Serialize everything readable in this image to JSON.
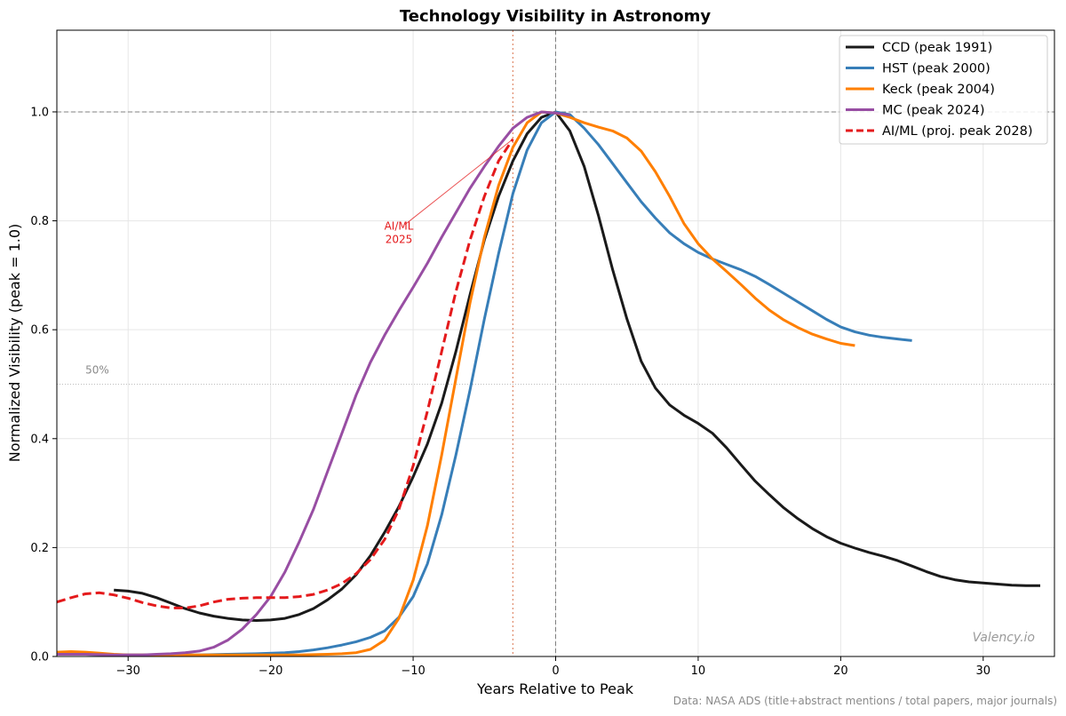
{
  "chart_data": {
    "type": "line",
    "title": "Technology Visibility in Astronomy",
    "xlabel": "Years Relative to Peak",
    "ylabel": "Normalized Visibility (peak = 1.0)",
    "xlim": [
      -35,
      35
    ],
    "ylim": [
      0,
      1.15
    ],
    "xticks": [
      -30,
      -20,
      -10,
      0,
      10,
      20,
      30
    ],
    "yticks": [
      0.0,
      0.2,
      0.4,
      0.6,
      0.8,
      1.0
    ],
    "grid": true,
    "legend_position": "top-right",
    "reference_lines": {
      "peak_y": 1.0,
      "peak_x": 0,
      "half_y": 0.5,
      "half_label": "50%",
      "aiml_now_x": -3
    },
    "annotation": {
      "text_line1": "AI/ML",
      "text_line2": "2025",
      "x": -3,
      "y": 0.95,
      "text_x": -11,
      "text_y": 0.79,
      "color": "#e41a1c"
    },
    "watermark": "Valency.io",
    "source": "Data: NASA ADS (title+abstract mentions / total papers, major journals)",
    "series": [
      {
        "name": "CCD (peak 1991)",
        "color": "#1a1a1a",
        "dash": "solid",
        "points": [
          [
            -31,
            0.122
          ],
          [
            -30,
            0.12
          ],
          [
            -29,
            0.116
          ],
          [
            -28,
            0.108
          ],
          [
            -27,
            0.098
          ],
          [
            -26,
            0.088
          ],
          [
            -25,
            0.08
          ],
          [
            -24,
            0.074
          ],
          [
            -23,
            0.07
          ],
          [
            -22,
            0.067
          ],
          [
            -21,
            0.066
          ],
          [
            -20,
            0.067
          ],
          [
            -19,
            0.07
          ],
          [
            -18,
            0.077
          ],
          [
            -17,
            0.088
          ],
          [
            -16,
            0.104
          ],
          [
            -15,
            0.124
          ],
          [
            -14,
            0.15
          ],
          [
            -13,
            0.185
          ],
          [
            -12,
            0.228
          ],
          [
            -11,
            0.275
          ],
          [
            -10,
            0.33
          ],
          [
            -9,
            0.39
          ],
          [
            -8,
            0.465
          ],
          [
            -7,
            0.56
          ],
          [
            -6,
            0.665
          ],
          [
            -5,
            0.765
          ],
          [
            -4,
            0.845
          ],
          [
            -3,
            0.91
          ],
          [
            -2,
            0.96
          ],
          [
            -1,
            0.99
          ],
          [
            0,
            1.0
          ],
          [
            1,
            0.965
          ],
          [
            2,
            0.9
          ],
          [
            3,
            0.81
          ],
          [
            4,
            0.71
          ],
          [
            5,
            0.62
          ],
          [
            6,
            0.542
          ],
          [
            7,
            0.493
          ],
          [
            8,
            0.462
          ],
          [
            9,
            0.443
          ],
          [
            10,
            0.428
          ],
          [
            11,
            0.41
          ],
          [
            12,
            0.383
          ],
          [
            13,
            0.352
          ],
          [
            14,
            0.322
          ],
          [
            15,
            0.297
          ],
          [
            16,
            0.273
          ],
          [
            17,
            0.253
          ],
          [
            18,
            0.235
          ],
          [
            19,
            0.22
          ],
          [
            20,
            0.208
          ],
          [
            21,
            0.199
          ],
          [
            22,
            0.191
          ],
          [
            23,
            0.184
          ],
          [
            24,
            0.176
          ],
          [
            25,
            0.166
          ],
          [
            26,
            0.156
          ],
          [
            27,
            0.147
          ],
          [
            28,
            0.141
          ],
          [
            29,
            0.137
          ],
          [
            30,
            0.135
          ],
          [
            31,
            0.133
          ],
          [
            32,
            0.131
          ],
          [
            33,
            0.13
          ],
          [
            34,
            0.13
          ]
        ]
      },
      {
        "name": "HST (peak 2000)",
        "color": "#377eb8",
        "dash": "solid",
        "points": [
          [
            -35,
            0.005
          ],
          [
            -33,
            0.004
          ],
          [
            -31,
            0.003
          ],
          [
            -29,
            0.003
          ],
          [
            -27,
            0.003
          ],
          [
            -25,
            0.003
          ],
          [
            -23,
            0.004
          ],
          [
            -21,
            0.005
          ],
          [
            -19,
            0.007
          ],
          [
            -18,
            0.009
          ],
          [
            -17,
            0.012
          ],
          [
            -16,
            0.016
          ],
          [
            -15,
            0.021
          ],
          [
            -14,
            0.027
          ],
          [
            -13,
            0.035
          ],
          [
            -12,
            0.047
          ],
          [
            -11,
            0.072
          ],
          [
            -10,
            0.11
          ],
          [
            -9,
            0.17
          ],
          [
            -8,
            0.26
          ],
          [
            -7,
            0.37
          ],
          [
            -6,
            0.49
          ],
          [
            -5,
            0.62
          ],
          [
            -4,
            0.74
          ],
          [
            -3,
            0.85
          ],
          [
            -2,
            0.93
          ],
          [
            -1,
            0.98
          ],
          [
            0,
            1.0
          ],
          [
            1,
            0.995
          ],
          [
            2,
            0.97
          ],
          [
            3,
            0.94
          ],
          [
            4,
            0.905
          ],
          [
            5,
            0.87
          ],
          [
            6,
            0.835
          ],
          [
            7,
            0.805
          ],
          [
            8,
            0.778
          ],
          [
            9,
            0.758
          ],
          [
            10,
            0.742
          ],
          [
            11,
            0.73
          ],
          [
            12,
            0.72
          ],
          [
            13,
            0.71
          ],
          [
            14,
            0.698
          ],
          [
            15,
            0.683
          ],
          [
            16,
            0.667
          ],
          [
            17,
            0.651
          ],
          [
            18,
            0.635
          ],
          [
            19,
            0.619
          ],
          [
            20,
            0.605
          ],
          [
            21,
            0.596
          ],
          [
            22,
            0.59
          ],
          [
            23,
            0.586
          ],
          [
            24,
            0.583
          ],
          [
            25,
            0.58
          ]
        ]
      },
      {
        "name": "Keck (peak 2004)",
        "color": "#ff7f00",
        "dash": "solid",
        "points": [
          [
            -35,
            0.008
          ],
          [
            -34,
            0.009
          ],
          [
            -33,
            0.008
          ],
          [
            -32,
            0.006
          ],
          [
            -31,
            0.004
          ],
          [
            -30,
            0.003
          ],
          [
            -28,
            0.003
          ],
          [
            -26,
            0.003
          ],
          [
            -24,
            0.003
          ],
          [
            -22,
            0.003
          ],
          [
            -20,
            0.003
          ],
          [
            -18,
            0.003
          ],
          [
            -16,
            0.004
          ],
          [
            -15,
            0.005
          ],
          [
            -14,
            0.007
          ],
          [
            -13,
            0.013
          ],
          [
            -12,
            0.03
          ],
          [
            -11,
            0.07
          ],
          [
            -10,
            0.14
          ],
          [
            -9,
            0.24
          ],
          [
            -8,
            0.37
          ],
          [
            -7,
            0.51
          ],
          [
            -6,
            0.65
          ],
          [
            -5,
            0.77
          ],
          [
            -4,
            0.865
          ],
          [
            -3,
            0.935
          ],
          [
            -2,
            0.98
          ],
          [
            -1,
            1.0
          ],
          [
            0,
            0.998
          ],
          [
            1,
            0.99
          ],
          [
            2,
            0.98
          ],
          [
            3,
            0.972
          ],
          [
            4,
            0.965
          ],
          [
            5,
            0.952
          ],
          [
            6,
            0.928
          ],
          [
            7,
            0.89
          ],
          [
            8,
            0.845
          ],
          [
            9,
            0.795
          ],
          [
            10,
            0.758
          ],
          [
            11,
            0.73
          ],
          [
            12,
            0.707
          ],
          [
            13,
            0.683
          ],
          [
            14,
            0.658
          ],
          [
            15,
            0.636
          ],
          [
            16,
            0.618
          ],
          [
            17,
            0.604
          ],
          [
            18,
            0.592
          ],
          [
            19,
            0.583
          ],
          [
            20,
            0.575
          ],
          [
            21,
            0.571
          ]
        ]
      },
      {
        "name": "MC (peak 2024)",
        "color": "#984ea3",
        "dash": "solid",
        "points": [
          [
            -35,
            0.004
          ],
          [
            -33,
            0.004
          ],
          [
            -31,
            0.003
          ],
          [
            -30,
            0.003
          ],
          [
            -29,
            0.003
          ],
          [
            -28,
            0.004
          ],
          [
            -27,
            0.005
          ],
          [
            -26,
            0.007
          ],
          [
            -25,
            0.01
          ],
          [
            -24,
            0.017
          ],
          [
            -23,
            0.03
          ],
          [
            -22,
            0.05
          ],
          [
            -21,
            0.077
          ],
          [
            -20,
            0.11
          ],
          [
            -19,
            0.155
          ],
          [
            -18,
            0.21
          ],
          [
            -17,
            0.27
          ],
          [
            -16,
            0.34
          ],
          [
            -15,
            0.41
          ],
          [
            -14,
            0.48
          ],
          [
            -13,
            0.54
          ],
          [
            -12,
            0.59
          ],
          [
            -11,
            0.635
          ],
          [
            -10,
            0.678
          ],
          [
            -9,
            0.722
          ],
          [
            -8,
            0.77
          ],
          [
            -7,
            0.815
          ],
          [
            -6,
            0.86
          ],
          [
            -5,
            0.9
          ],
          [
            -4,
            0.937
          ],
          [
            -3,
            0.97
          ],
          [
            -2,
            0.99
          ],
          [
            -1,
            1.0
          ],
          [
            0,
            0.998
          ],
          [
            1,
            0.994
          ]
        ]
      },
      {
        "name": "AI/ML (proj. peak 2028)",
        "color": "#e41a1c",
        "dash": "dashed",
        "points": [
          [
            -35,
            0.1
          ],
          [
            -34,
            0.108
          ],
          [
            -33,
            0.115
          ],
          [
            -32,
            0.117
          ],
          [
            -31,
            0.113
          ],
          [
            -30,
            0.107
          ],
          [
            -29,
            0.099
          ],
          [
            -28,
            0.093
          ],
          [
            -27,
            0.089
          ],
          [
            -26,
            0.089
          ],
          [
            -25,
            0.093
          ],
          [
            -24,
            0.1
          ],
          [
            -23,
            0.105
          ],
          [
            -22,
            0.107
          ],
          [
            -21,
            0.108
          ],
          [
            -20,
            0.108
          ],
          [
            -19,
            0.108
          ],
          [
            -18,
            0.11
          ],
          [
            -17,
            0.114
          ],
          [
            -16,
            0.122
          ],
          [
            -15,
            0.134
          ],
          [
            -14,
            0.152
          ],
          [
            -13,
            0.178
          ],
          [
            -12,
            0.215
          ],
          [
            -11,
            0.27
          ],
          [
            -10,
            0.35
          ],
          [
            -9,
            0.45
          ],
          [
            -8,
            0.56
          ],
          [
            -7,
            0.67
          ],
          [
            -6,
            0.765
          ],
          [
            -5,
            0.845
          ],
          [
            -4,
            0.91
          ],
          [
            -3,
            0.95
          ]
        ]
      }
    ]
  }
}
